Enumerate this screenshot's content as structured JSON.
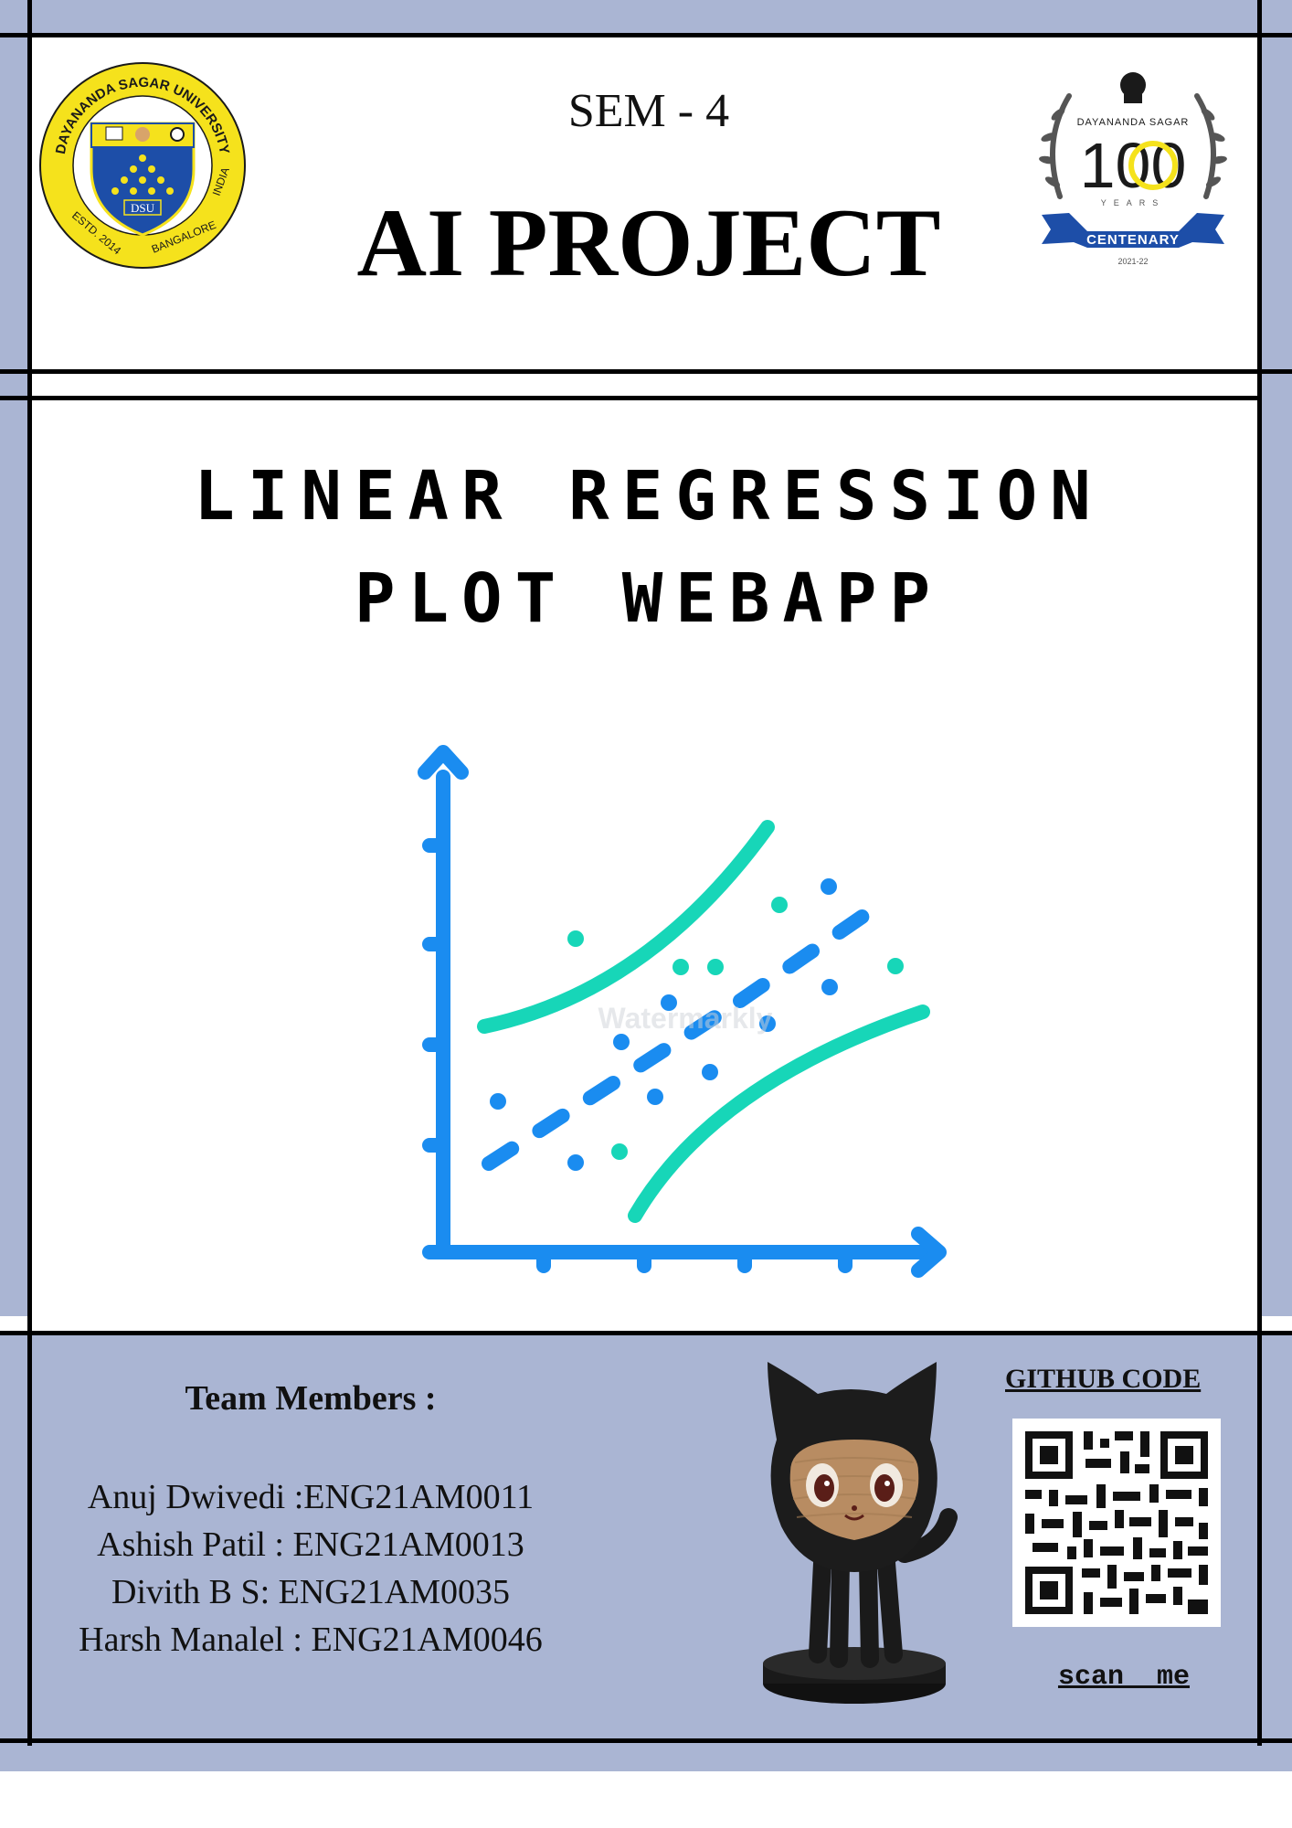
{
  "header": {
    "semester": "SEM - 4",
    "title": "AI PROJECT",
    "left_logo": {
      "top_arc_text": "DAYANANDA SAGAR UNIVERSITY",
      "bottom_left_text": "ESTD. 2014",
      "bottom_right_text": "BANGALORE",
      "right_text": "INDIA",
      "shield_text": "DSU"
    },
    "right_logo": {
      "top_text": "DAYANANDA SAGAR",
      "number": "100",
      "years": "YEARS",
      "ribbon": "CENTENARY",
      "dates": "2021-22"
    }
  },
  "project_title": {
    "line1": "LINEAR REGRESSION",
    "line2": "PLOT WEBAPP"
  },
  "illustration": {
    "icon": "regression-chart-icon",
    "watermark": "Watermarkly"
  },
  "footer": {
    "team_heading": "Team Members :",
    "members": [
      "Anuj Dwivedi :ENG21AM0011",
      "Ashish Patil : ENG21AM0013",
      "Divith B S: ENG21AM0035",
      "Harsh Manalel : ENG21AM0046"
    ],
    "mascot_icon": "octocat-figure-icon",
    "github_label": "GITHUB CODE",
    "qr_icon": "qr-code-icon",
    "scan_label": "scan  me"
  },
  "colors": {
    "background": "#aab5d3",
    "panel": "#ffffff",
    "frame": "#000000",
    "chart_blue": "#1a8cf0",
    "chart_teal": "#17d6b8"
  }
}
